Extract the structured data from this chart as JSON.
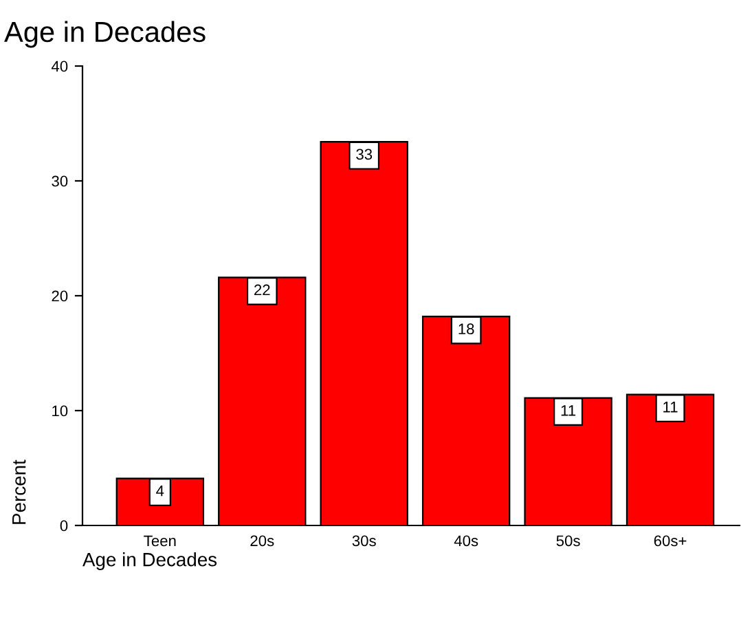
{
  "chart_data": {
    "type": "bar",
    "title": "Age in Decades",
    "xlabel": "Age in Decades",
    "ylabel": "Percent",
    "categories": [
      "Teen",
      "20s",
      "30s",
      "40s",
      "50s",
      "60s+"
    ],
    "values": [
      4.1,
      21.6,
      33.4,
      18.2,
      11.1,
      11.4
    ],
    "value_labels": [
      "4",
      "22",
      "33",
      "18",
      "11",
      "11"
    ],
    "color": "#ff0000",
    "ylim": [
      0,
      40
    ],
    "yticks": [
      0,
      10,
      20,
      30,
      40
    ],
    "grid": false,
    "legend": false
  }
}
